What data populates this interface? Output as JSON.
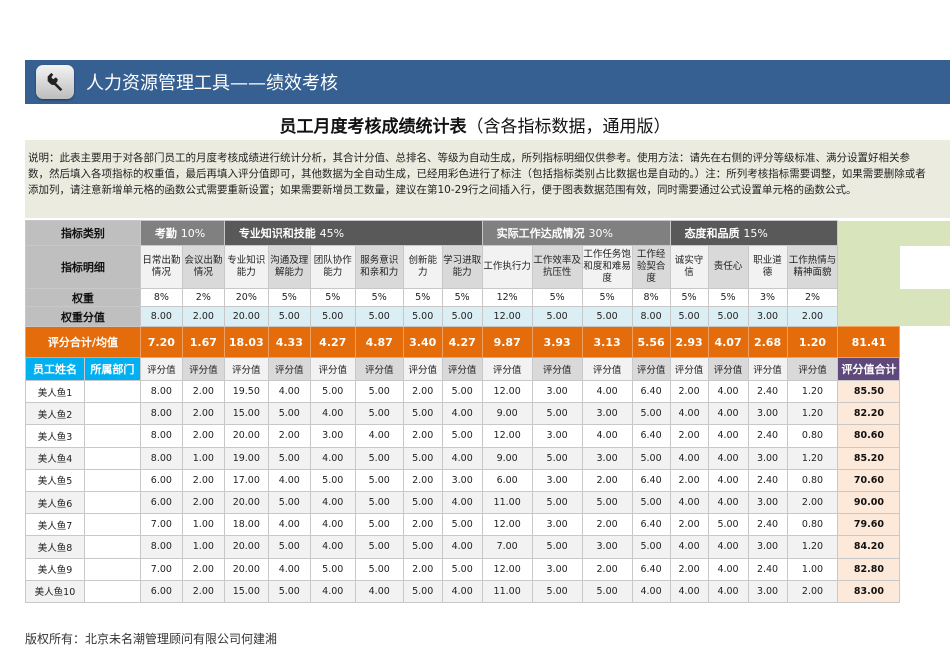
{
  "banner": {
    "title": "人力资源管理工具——绩效考核",
    "icon": "wrench-icon"
  },
  "title": {
    "main": "员工月度考核成绩统计表",
    "sub": "（含各指标数据，通用版）"
  },
  "note": "说明：此表主要用于对各部门员工的月度考核成绩进行统计分析，其合计分值、总排名、等级为自动生成，所列指标明细仅供参考。使用方法：请先在右侧的评分等级标准、满分设置好相关参数，然后填入各项指标的权重值，最后再填入评分值即可，其他数据为全自动生成，已经用彩色进行了标注（包括指标类别占比数据也是自动的。）注：所列考核指标需要调整，如果需要删除或者添加列，请注意新增单元格的函数公式需要重新设置；如果需要新增员工数量，建议在第10-29行之间插入行，便于图表数据范围有效，同时需要通过公式设置单元格的函数公式。",
  "table": {
    "labels": {
      "category": "指标类别",
      "detail": "指标明细",
      "weight": "权重",
      "weight_score": "权重分值",
      "avg": "评分合计/均值",
      "name": "员工姓名",
      "dept": "所属部门",
      "score": "评分值",
      "total": "评分值合计"
    },
    "categories": [
      {
        "name": "考勤",
        "pct": "10%",
        "span": 2,
        "color": "#808080"
      },
      {
        "name": "专业知识和技能",
        "pct": "45%",
        "span": 6,
        "color": "#595959"
      },
      {
        "name": "实际工作达成情况",
        "pct": "30%",
        "span": 4,
        "color": "#808080"
      },
      {
        "name": "态度和品质",
        "pct": "15%",
        "span": 4,
        "color": "#595959"
      }
    ],
    "indicators": [
      "日常出勤情况",
      "会议出勤情况",
      "专业知识能力",
      "沟通及理解能力",
      "团队协作能力",
      "服务意识和亲和力",
      "创新能力",
      "学习进取能力",
      "工作执行力",
      "工作效率及抗压性",
      "工作任务饱和度和难易度",
      "工作经验契合度",
      "诚实守信",
      "责任心",
      "职业道德",
      "工作热情与精神面貌"
    ],
    "weights": [
      "8%",
      "2%",
      "20%",
      "5%",
      "5%",
      "5%",
      "5%",
      "5%",
      "12%",
      "5%",
      "5%",
      "8%",
      "5%",
      "5%",
      "3%",
      "2%"
    ],
    "weight_scores": [
      "8.00",
      "2.00",
      "20.00",
      "5.00",
      "5.00",
      "5.00",
      "5.00",
      "5.00",
      "12.00",
      "5.00",
      "5.00",
      "8.00",
      "5.00",
      "5.00",
      "3.00",
      "2.00"
    ],
    "averages": [
      "7.20",
      "1.67",
      "18.03",
      "4.33",
      "4.27",
      "4.87",
      "3.40",
      "4.27",
      "9.87",
      "3.93",
      "3.13",
      "5.56",
      "2.93",
      "4.07",
      "2.68",
      "1.20"
    ],
    "average_total": "81.41",
    "rows": [
      {
        "name": "美人鱼1",
        "dept": "",
        "scores": [
          "8.00",
          "2.00",
          "19.50",
          "4.00",
          "5.00",
          "5.00",
          "2.00",
          "5.00",
          "12.00",
          "3.00",
          "4.00",
          "6.40",
          "2.00",
          "4.00",
          "2.40",
          "1.20"
        ],
        "total": "85.50"
      },
      {
        "name": "美人鱼2",
        "dept": "",
        "scores": [
          "8.00",
          "2.00",
          "15.00",
          "5.00",
          "4.00",
          "5.00",
          "5.00",
          "4.00",
          "9.00",
          "5.00",
          "3.00",
          "5.00",
          "4.00",
          "4.00",
          "3.00",
          "1.20"
        ],
        "total": "82.20"
      },
      {
        "name": "美人鱼3",
        "dept": "",
        "scores": [
          "8.00",
          "2.00",
          "20.00",
          "2.00",
          "3.00",
          "4.00",
          "2.00",
          "5.00",
          "12.00",
          "3.00",
          "4.00",
          "6.40",
          "2.00",
          "4.00",
          "2.40",
          "0.80"
        ],
        "total": "80.60"
      },
      {
        "name": "美人鱼4",
        "dept": "",
        "scores": [
          "8.00",
          "1.00",
          "19.00",
          "5.00",
          "4.00",
          "5.00",
          "5.00",
          "4.00",
          "9.00",
          "5.00",
          "3.00",
          "5.00",
          "4.00",
          "4.00",
          "3.00",
          "1.20"
        ],
        "total": "85.20"
      },
      {
        "name": "美人鱼5",
        "dept": "",
        "scores": [
          "6.00",
          "2.00",
          "17.00",
          "4.00",
          "5.00",
          "5.00",
          "2.00",
          "3.00",
          "6.00",
          "3.00",
          "2.00",
          "6.40",
          "2.00",
          "4.00",
          "2.40",
          "0.80"
        ],
        "total": "70.60"
      },
      {
        "name": "美人鱼6",
        "dept": "",
        "scores": [
          "6.00",
          "2.00",
          "20.00",
          "5.00",
          "4.00",
          "5.00",
          "5.00",
          "4.00",
          "11.00",
          "5.00",
          "5.00",
          "5.00",
          "4.00",
          "4.00",
          "3.00",
          "2.00"
        ],
        "total": "90.00"
      },
      {
        "name": "美人鱼7",
        "dept": "",
        "scores": [
          "7.00",
          "1.00",
          "18.00",
          "4.00",
          "4.00",
          "5.00",
          "2.00",
          "5.00",
          "12.00",
          "3.00",
          "2.00",
          "6.40",
          "2.00",
          "5.00",
          "2.40",
          "0.80"
        ],
        "total": "79.60"
      },
      {
        "name": "美人鱼8",
        "dept": "",
        "scores": [
          "8.00",
          "1.00",
          "20.00",
          "5.00",
          "4.00",
          "5.00",
          "5.00",
          "4.00",
          "7.00",
          "5.00",
          "3.00",
          "5.00",
          "4.00",
          "4.00",
          "3.00",
          "1.20"
        ],
        "total": "84.20"
      },
      {
        "name": "美人鱼9",
        "dept": "",
        "scores": [
          "7.00",
          "2.00",
          "20.00",
          "4.00",
          "5.00",
          "5.00",
          "2.00",
          "5.00",
          "12.00",
          "3.00",
          "2.00",
          "6.40",
          "2.00",
          "4.00",
          "2.40",
          "1.00"
        ],
        "total": "82.80"
      },
      {
        "name": "美人鱼10",
        "dept": "",
        "scores": [
          "6.00",
          "2.00",
          "15.00",
          "5.00",
          "4.00",
          "4.00",
          "5.00",
          "4.00",
          "11.00",
          "5.00",
          "5.00",
          "4.00",
          "4.00",
          "4.00",
          "3.00",
          "2.00"
        ],
        "total": "83.00"
      }
    ]
  },
  "footer": "版权所有：北京未名潮管理顾问有限公司何建湘",
  "colors": {
    "banner": "#376092",
    "orange": "#e46c0a",
    "employee_header": "#00b0f0",
    "total_header": "#5f497a",
    "total_cell": "#fde9d9",
    "weight_score": "#dbeef4",
    "green": "#d8e4bc"
  }
}
